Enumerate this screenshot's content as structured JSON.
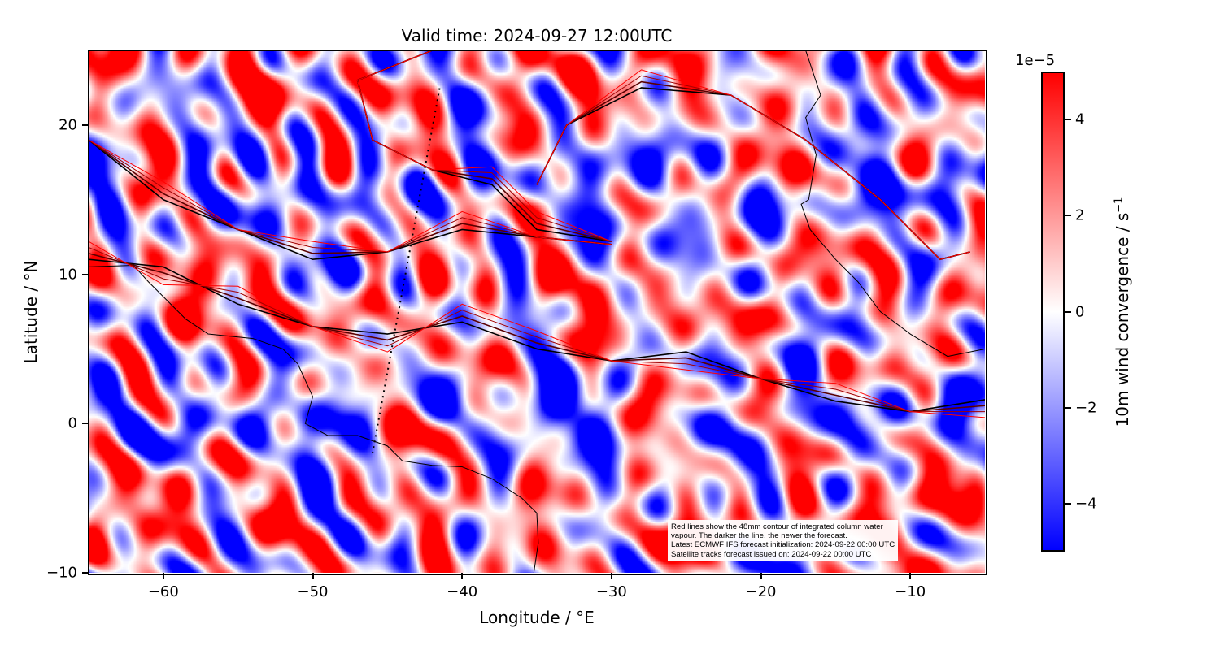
{
  "title": "Valid time: 2024-09-27 12:00UTC",
  "xaxis": {
    "label": "Longitude / °E",
    "range": [
      -65,
      -5
    ],
    "ticks": [
      -60,
      -50,
      -40,
      -30,
      -20,
      -10
    ],
    "tick_labels": [
      "−60",
      "−50",
      "−40",
      "−30",
      "−20",
      "−10"
    ]
  },
  "yaxis": {
    "label": "Latitude / °N",
    "range": [
      -10,
      25
    ],
    "ticks": [
      20,
      10,
      0,
      -10
    ],
    "tick_labels": [
      "20",
      "10",
      "0",
      "−10"
    ]
  },
  "colorbar": {
    "label_main": "10m wind convergence / s",
    "label_sup": "−1",
    "exponent": "1e−5",
    "range": [
      -5,
      5
    ],
    "ticks": [
      4,
      2,
      0,
      -2,
      -4
    ],
    "tick_labels": [
      "4",
      "2",
      "0",
      "−2",
      "−4"
    ],
    "colormap": "bwr",
    "colors": {
      "max": "#ff0000",
      "mid": "#ffffff",
      "min": "#0000ff"
    }
  },
  "annotation": {
    "line1": "Red lines show the 48mm contour of integrated column water",
    "line2": "vapour. The darker the line, the newer the forecast.",
    "line3": "Latest ECMWF IFS forecast initialization: 2024-09-22 00:00 UTC",
    "line4": "Satellite tracks forecast issued on: 2024-09-22 00:00 UTC"
  },
  "satellite_track": {
    "start": [
      -46,
      -2
    ],
    "end": [
      -41.5,
      22.5
    ],
    "style": "dotted"
  },
  "contour_colors": [
    "#000000",
    "#5a0000",
    "#a00000",
    "#ff0000"
  ]
}
